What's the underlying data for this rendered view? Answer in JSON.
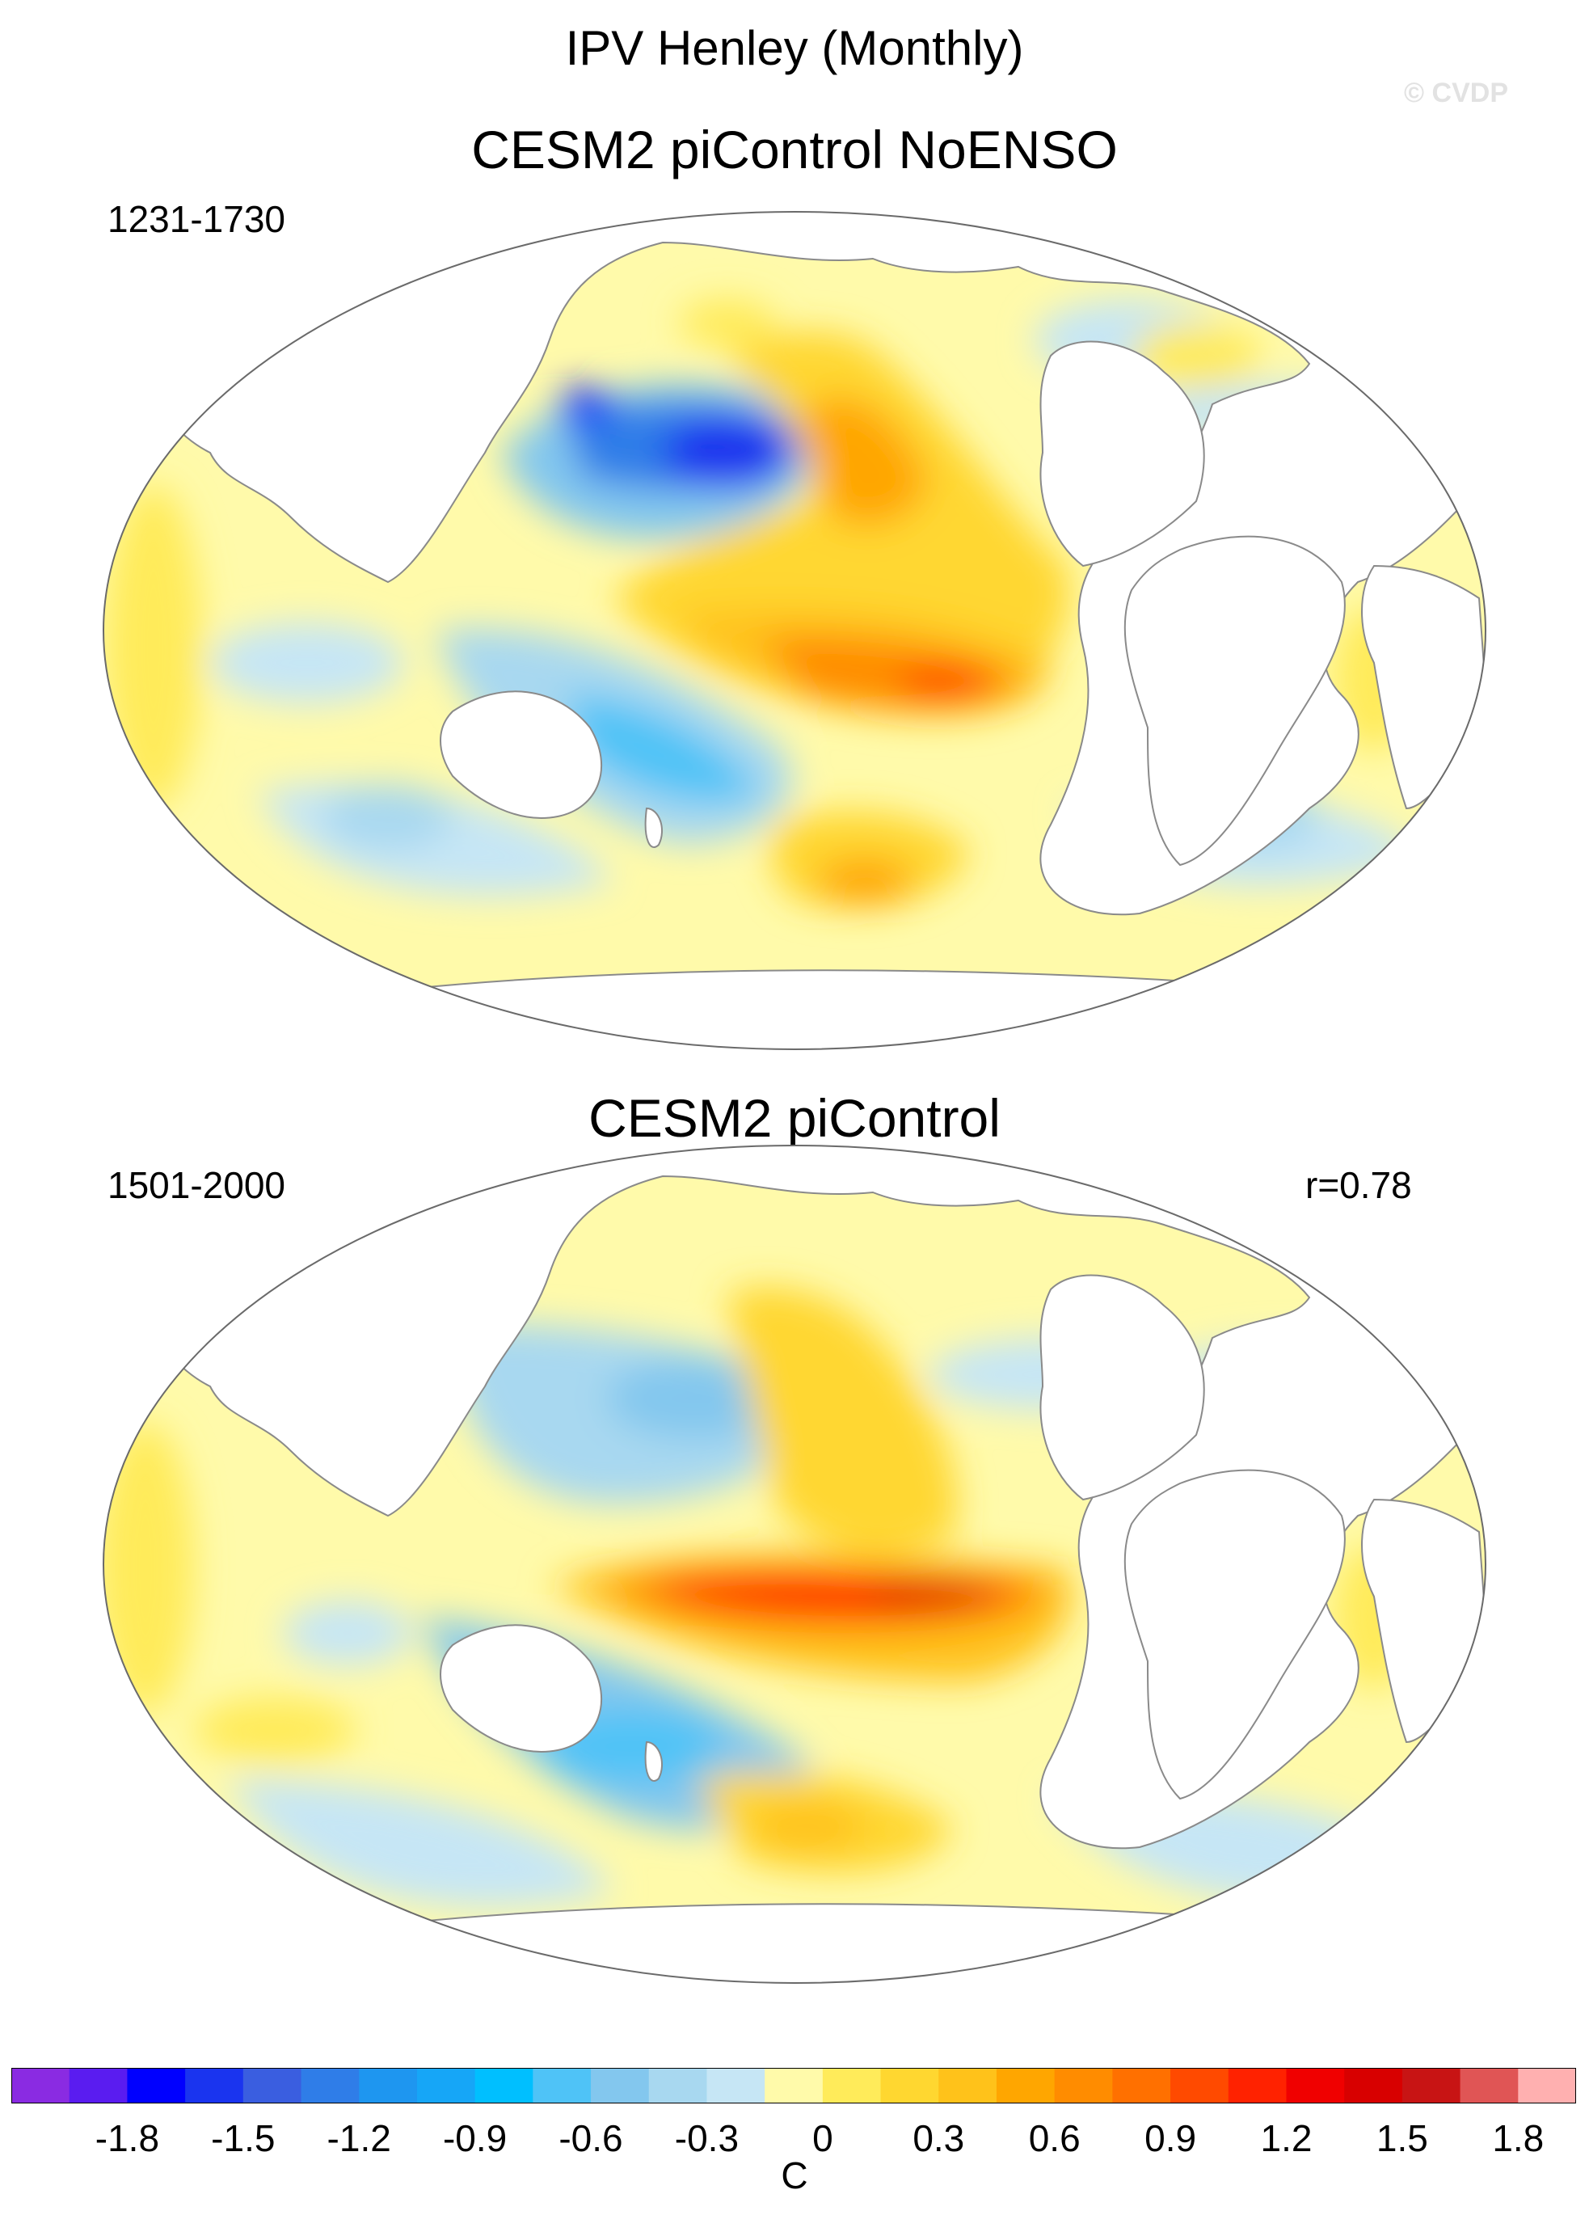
{
  "title": "IPV Henley (Monthly)",
  "watermark": "© CVDP",
  "panels": [
    {
      "title": "CESM2 piControl NoENSO",
      "period": "1231-1730",
      "correlation": ""
    },
    {
      "title": "CESM2 piControl",
      "period": "1501-2000",
      "correlation": "r=0.78"
    }
  ],
  "colorbar": {
    "colors": [
      "#8a2be2",
      "#5a1cf0",
      "#0000ff",
      "#1a34ef",
      "#3a5ee0",
      "#2f7de8",
      "#1e96f0",
      "#16a6f7",
      "#00bfff",
      "#4fc3f7",
      "#83c7ee",
      "#a8d8f0",
      "#c6e6f5",
      "#fffaaa",
      "#ffeb5a",
      "#ffd730",
      "#ffc21a",
      "#ffa600",
      "#ff8c00",
      "#ff7000",
      "#ff4a00",
      "#ff2200",
      "#f00000",
      "#d80000",
      "#c81414",
      "#e05555",
      "#ffb0b0"
    ],
    "labels": [
      "-1.8",
      "-1.5",
      "-1.2",
      "-0.9",
      "-0.6",
      "-0.3",
      "0",
      "0.3",
      "0.6",
      "0.9",
      "1.2",
      "1.5",
      "1.8"
    ],
    "units": "C"
  }
}
